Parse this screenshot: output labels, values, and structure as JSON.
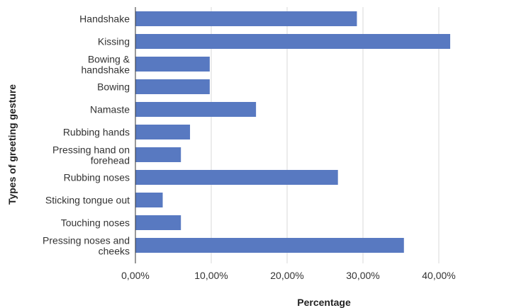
{
  "chart_data": {
    "type": "bar",
    "orientation": "horizontal",
    "xlabel": "Percentage",
    "ylabel": "Types of greeting gesture",
    "xlim": [
      0,
      42
    ],
    "grid": true,
    "bar_color": "#5879c1",
    "categories": [
      [
        "Handshake"
      ],
      [
        "Kissing"
      ],
      [
        "Bowing &",
        "handshake"
      ],
      [
        "Bowing"
      ],
      [
        "Namaste"
      ],
      [
        "Rubbing hands"
      ],
      [
        "Pressing hand on",
        "forehead"
      ],
      [
        "Rubbing noses"
      ],
      [
        "Sticking tongue out"
      ],
      [
        "Touching noses"
      ],
      [
        "Pressing noses and",
        "cheeks"
      ]
    ],
    "values": [
      29.2,
      41.5,
      9.8,
      9.8,
      15.9,
      7.2,
      6.0,
      26.7,
      3.6,
      6.0,
      35.4
    ],
    "ticks": [
      0,
      10,
      20,
      30,
      40
    ],
    "tick_labels": [
      "0,00%",
      "10,00%",
      "20,00%",
      "30,00%",
      "40,00%"
    ]
  }
}
